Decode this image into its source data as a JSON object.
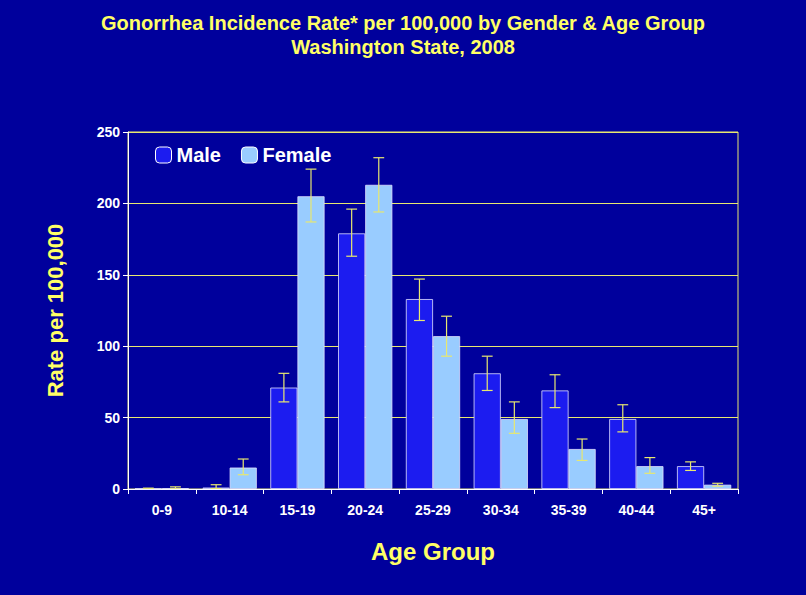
{
  "chart_data": {
    "type": "bar",
    "title": "Gonorrhea Incidence Rate* per 100,000 by Gender & Age Group",
    "subtitle": "Washington State, 2008",
    "x_label": "Age Group",
    "y_label": "Rate per 100,000",
    "categories": [
      "0-9",
      "10-14",
      "15-19",
      "20-24",
      "25-29",
      "30-34",
      "35-39",
      "40-44",
      "45+"
    ],
    "series": [
      {
        "name": "Male",
        "color": "#1c1cf0",
        "values": [
          0.3,
          1,
          71,
          179,
          133,
          81,
          69,
          49,
          16
        ],
        "error_low": [
          0.1,
          0.3,
          61,
          163,
          118,
          69,
          57,
          40,
          13
        ],
        "error_high": [
          0.6,
          3,
          81,
          196,
          147,
          93,
          80,
          59,
          19
        ]
      },
      {
        "name": "Female",
        "color": "#99ccff",
        "values": [
          0.5,
          15,
          205,
          213,
          107,
          49,
          28,
          16,
          3
        ],
        "error_low": [
          0.1,
          10,
          187,
          194,
          93,
          39,
          20,
          11,
          2
        ],
        "error_high": [
          1.5,
          21,
          224,
          232,
          121,
          61,
          35,
          22,
          4
        ]
      }
    ],
    "ylim": [
      0,
      250
    ],
    "yticks": [
      0,
      50,
      100,
      150,
      200,
      250
    ],
    "grid": true,
    "legend": "top-left",
    "data_labels": false
  }
}
